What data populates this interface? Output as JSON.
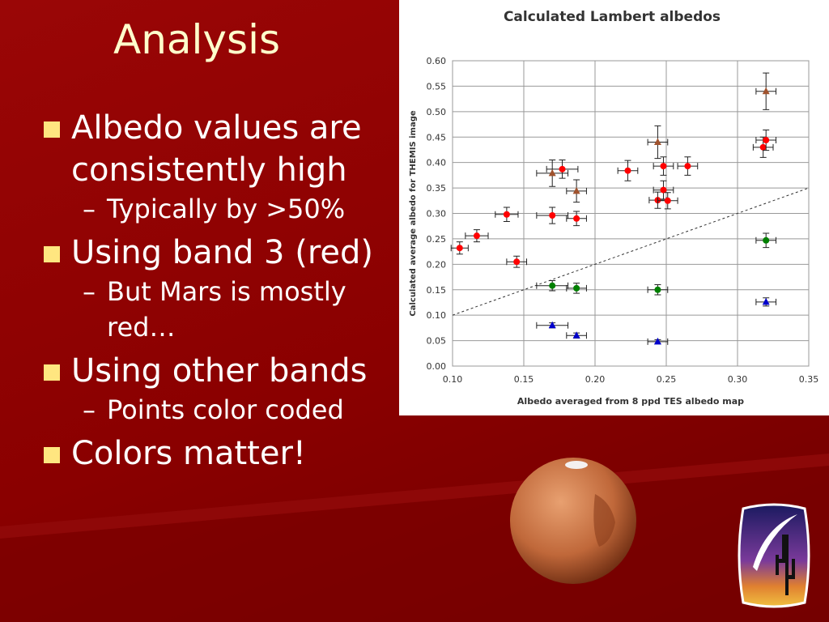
{
  "slide": {
    "title": "Analysis",
    "bullets": [
      {
        "text": "Albedo values are consistently high",
        "level": 1
      },
      {
        "text": "Typically by >50%",
        "level": 2
      },
      {
        "text": "Using band 3 (red)",
        "level": 1
      },
      {
        "text": "But Mars is mostly red…",
        "level": 2
      },
      {
        "text": "Using other bands",
        "level": 1
      },
      {
        "text": "Points color coded",
        "level": 2
      },
      {
        "text": "Colors matter!",
        "level": 1
      }
    ]
  },
  "chart_data": {
    "type": "scatter",
    "title": "Calculated Lambert albedos",
    "x_label": "Albedo averaged from 8 ppd TES albedo map",
    "y_label": "Calculated average albedo for THEMIS image",
    "xlim": [
      0.1,
      0.35
    ],
    "ylim": [
      0,
      0.6
    ],
    "xticks": [
      {
        "value": 0.1,
        "label": "0.10"
      },
      {
        "value": 0.15,
        "label": "0.15"
      },
      {
        "value": 0.2,
        "label": "0.20"
      },
      {
        "value": 0.25,
        "label": "0.25"
      },
      {
        "value": 0.3,
        "label": "0.30"
      },
      {
        "value": 0.35,
        "label": "0.35"
      }
    ],
    "yticks": [
      {
        "value": 0,
        "label": "0.00"
      },
      {
        "value": 0.05,
        "label": "0.05"
      },
      {
        "value": 0.1,
        "label": "0.10"
      },
      {
        "value": 0.15,
        "label": "0.15"
      },
      {
        "value": 0.2,
        "label": "0.20"
      },
      {
        "value": 0.25,
        "label": "0.25"
      },
      {
        "value": 0.3,
        "label": "0.30"
      },
      {
        "value": 0.35,
        "label": "0.35"
      },
      {
        "value": 0.4,
        "label": "0.40"
      },
      {
        "value": 0.45,
        "label": "0.45"
      },
      {
        "value": 0.5,
        "label": "0.50"
      },
      {
        "value": 0.55,
        "label": "0.55"
      },
      {
        "value": 0.6,
        "label": "0.60"
      }
    ],
    "grid": true,
    "reference_line": {
      "x": [
        0.1,
        0.35
      ],
      "values": [
        0.1,
        0.35
      ]
    },
    "series": [
      {
        "color": "#ff0000",
        "marker": "circle",
        "x": [
          0.105,
          0.117,
          0.138,
          0.145,
          0.17,
          0.177,
          0.187,
          0.223,
          0.244,
          0.248,
          0.248,
          0.251,
          0.265,
          0.318,
          0.32
        ],
        "values": [
          0.232,
          0.256,
          0.298,
          0.205,
          0.296,
          0.387,
          0.29,
          0.384,
          0.326,
          0.346,
          0.393,
          0.325,
          0.393,
          0.43,
          0.444
        ],
        "x_errors": [
          0.006,
          0.008,
          0.008,
          0.007,
          0.011,
          0.011,
          0.007,
          0.007,
          0.006,
          0.007,
          0.007,
          0.007,
          0.007,
          0.007,
          0.007
        ],
        "y_errors": [
          0.012,
          0.012,
          0.014,
          0.011,
          0.016,
          0.018,
          0.014,
          0.02,
          0.016,
          0.018,
          0.018,
          0.016,
          0.018,
          0.02,
          0.02
        ]
      },
      {
        "color": "#a0522d",
        "marker": "triangle",
        "x": [
          0.17,
          0.187,
          0.244,
          0.32
        ],
        "values": [
          0.379,
          0.344,
          0.44,
          0.54
        ],
        "x_errors": [
          0.011,
          0.007,
          0.007,
          0.007
        ],
        "y_errors": [
          0.026,
          0.022,
          0.032,
          0.036
        ]
      },
      {
        "color": "#008000",
        "marker": "circle",
        "x": [
          0.17,
          0.187,
          0.244,
          0.32
        ],
        "values": [
          0.158,
          0.153,
          0.15,
          0.247
        ],
        "x_errors": [
          0.011,
          0.007,
          0.007,
          0.007
        ],
        "y_errors": [
          0.01,
          0.01,
          0.01,
          0.014
        ]
      },
      {
        "color": "#0000cc",
        "marker": "triangle",
        "x": [
          0.17,
          0.187,
          0.244,
          0.32
        ],
        "values": [
          0.08,
          0.06,
          0.048,
          0.126
        ],
        "x_errors": [
          0.011,
          0.007,
          0.007,
          0.007
        ],
        "y_errors": [
          0.005,
          0.005,
          0.004,
          0.008
        ]
      }
    ]
  }
}
